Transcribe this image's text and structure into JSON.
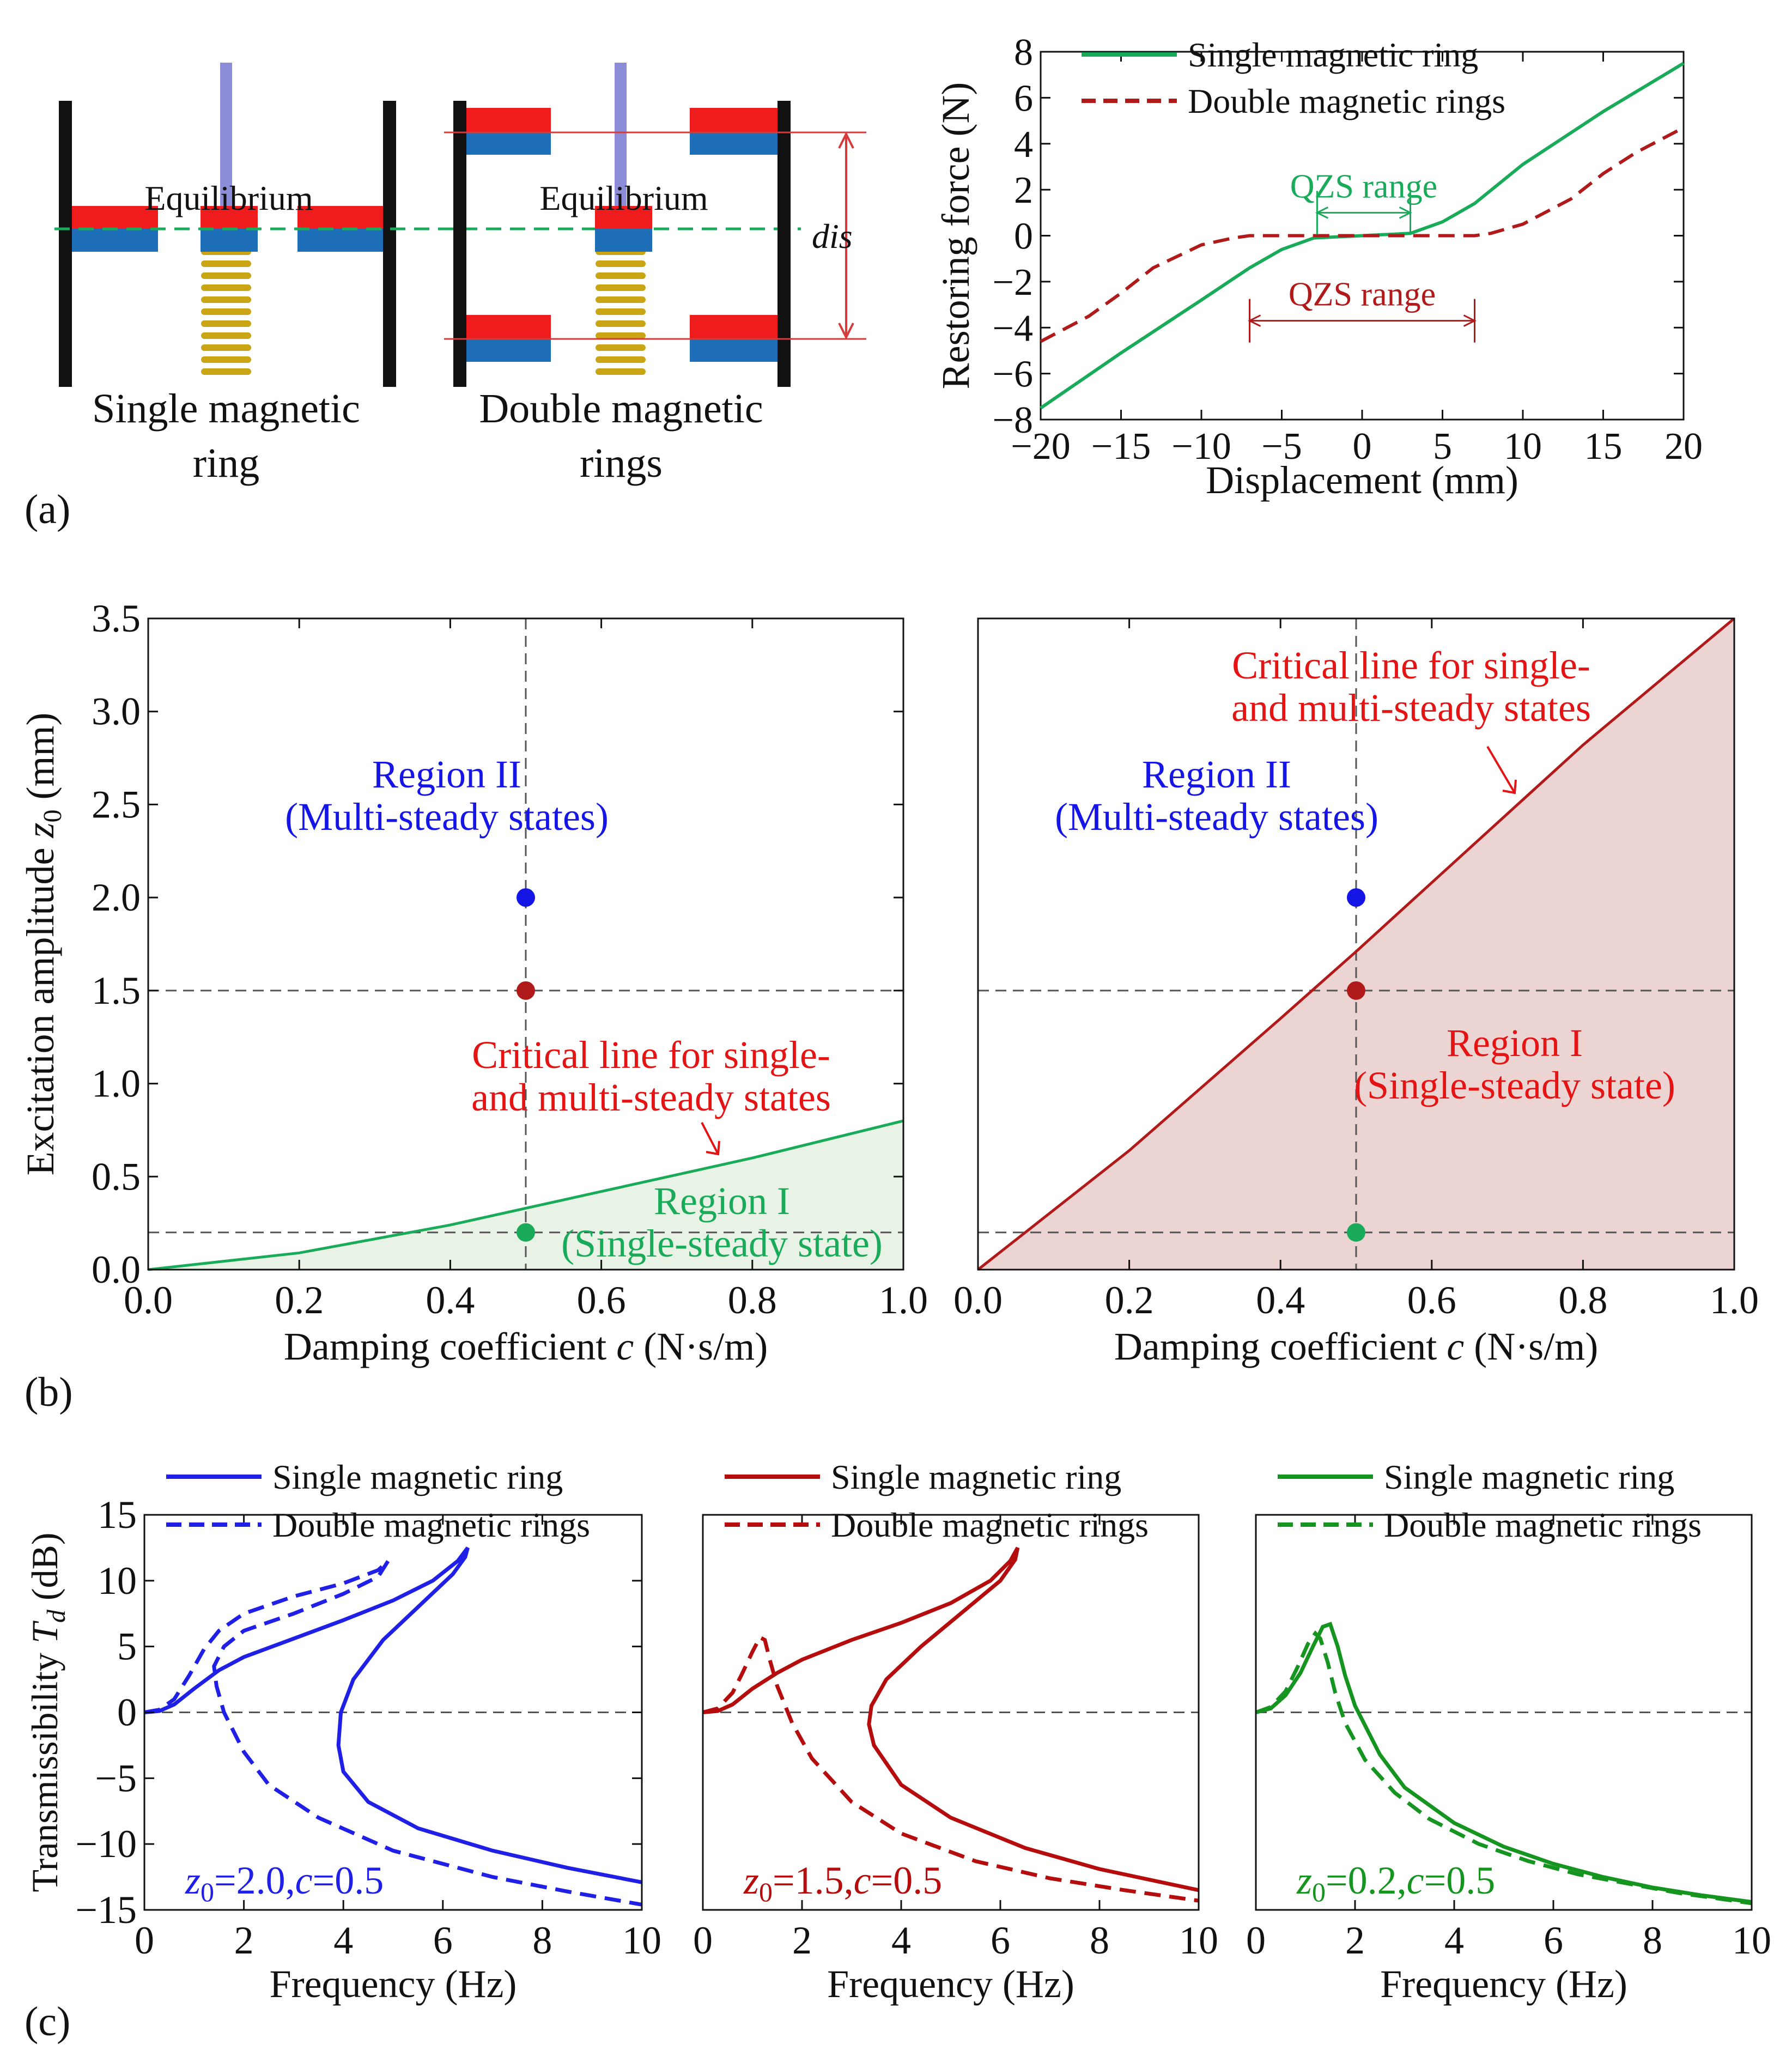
{
  "colors": {
    "magnet_red": "#ee1c1c",
    "magnet_blue": "#1f6fb8",
    "wall": "#111111",
    "rod": "#8c8cd8",
    "spring": "#c9a516",
    "guide": "#d63a3a",
    "single_green": "#1aab5a",
    "double_red": "#b11a1a",
    "region2_blue": "#1515e6",
    "critical_red": "#e41414",
    "fill_green": "#e8f3e6",
    "fill_red": "#ecd4d2",
    "c_blue": "#1f1fe6",
    "c_red": "#b50d0d",
    "c_green": "#159420"
  },
  "panel_a": {
    "label": "(a)",
    "equilibrium_label": "Equilibrium",
    "dis_label": "dis",
    "single_caption": [
      "Single magnetic",
      "ring"
    ],
    "double_caption": [
      "Double magnetic",
      "rings"
    ],
    "icons": [
      "magnetic-ring-icon",
      "spring-icon",
      "rod-icon"
    ]
  },
  "chart_data": [
    {
      "id": "a_force",
      "type": "line",
      "title": "",
      "xlabel": "Displacement (mm)",
      "ylabel": "Restoring force (N)",
      "xlim": [
        -20,
        20
      ],
      "ylim": [
        -8,
        8
      ],
      "xticks": [
        -20,
        -15,
        -10,
        -5,
        0,
        5,
        10,
        15,
        20
      ],
      "yticks": [
        -8,
        -6,
        -4,
        -2,
        0,
        2,
        4,
        6,
        8
      ],
      "legend": "top-left",
      "series": [
        {
          "name": "Single magnetic ring",
          "style": "solid",
          "color": "#1aab5a",
          "x": [
            -20,
            -15,
            -10,
            -7,
            -5,
            -3,
            0,
            3,
            5,
            7,
            10,
            15,
            20
          ],
          "y": [
            -7.5,
            -5.1,
            -2.8,
            -1.4,
            -0.6,
            -0.1,
            0,
            0.1,
            0.6,
            1.4,
            3.1,
            5.4,
            7.5
          ]
        },
        {
          "name": "Double magnetic rings",
          "style": "dashed",
          "color": "#b11a1a",
          "x": [
            -20,
            -17,
            -15,
            -13,
            -10,
            -8,
            -7,
            -5,
            0,
            5,
            7,
            8,
            10,
            13,
            15,
            17,
            20
          ],
          "y": [
            -4.6,
            -3.5,
            -2.5,
            -1.4,
            -0.4,
            -0.1,
            0,
            0,
            0,
            0,
            0,
            0.1,
            0.5,
            1.6,
            2.7,
            3.6,
            4.7
          ]
        }
      ],
      "annotations": [
        {
          "text": "QZS range",
          "color": "#1aab5a",
          "x_from": -2.8,
          "x_to": 3,
          "y": 1.0
        },
        {
          "text": "QZS range",
          "color": "#b11a1a",
          "x_from": -7,
          "x_to": 7,
          "y": -3.7
        }
      ]
    },
    {
      "id": "b_left",
      "type": "area",
      "xlabel": "Damping coefficient c (N·s/m)",
      "ylabel": "Excitation amplitude z0 (mm)",
      "xlim": [
        0,
        1
      ],
      "ylim": [
        0,
        3.5
      ],
      "xticks": [
        "0.0",
        "0.2",
        "0.4",
        "0.6",
        "0.8",
        "1.0"
      ],
      "yticks": [
        "0.0",
        "0.5",
        "1.0",
        "1.5",
        "2.0",
        "2.5",
        "3.0",
        "3.5"
      ],
      "series": [
        {
          "name": "Critical line for single- and multi-steady states",
          "color": "#1aab5a",
          "x": [
            0,
            0.2,
            0.4,
            0.5,
            0.6,
            0.8,
            1.0
          ],
          "y": [
            0,
            0.09,
            0.24,
            0.33,
            0.42,
            0.6,
            0.8
          ]
        }
      ],
      "points": [
        {
          "x": 0.5,
          "y": 2.0,
          "color": "#1515e6"
        },
        {
          "x": 0.5,
          "y": 1.5,
          "color": "#b11a1a"
        },
        {
          "x": 0.5,
          "y": 0.2,
          "color": "#1aab5a"
        }
      ],
      "reference_lines": {
        "x": [
          0.5
        ],
        "y": [
          1.5,
          0.2
        ]
      },
      "texts": {
        "region2": [
          "Region II",
          "(Multi-steady states)"
        ],
        "critical": [
          "Critical line for single-",
          "and multi-steady states"
        ],
        "region1": [
          "Region I",
          "(Single-steady state)"
        ]
      }
    },
    {
      "id": "b_right",
      "type": "area",
      "xlabel": "Damping coefficient c (N·s/m)",
      "ylabel": "",
      "xlim": [
        0,
        1
      ],
      "ylim": [
        0,
        3.5
      ],
      "xticks": [
        "0.0",
        "0.2",
        "0.4",
        "0.6",
        "0.8",
        "1.0"
      ],
      "series": [
        {
          "name": "Critical line for single- and multi-steady states",
          "color": "#b11a1a",
          "x": [
            0,
            0.2,
            0.4,
            0.5,
            0.6,
            0.8,
            1.0
          ],
          "y": [
            0,
            0.64,
            1.35,
            1.71,
            2.08,
            2.82,
            3.5
          ]
        }
      ],
      "points": [
        {
          "x": 0.5,
          "y": 2.0,
          "color": "#1515e6"
        },
        {
          "x": 0.5,
          "y": 1.5,
          "color": "#b11a1a"
        },
        {
          "x": 0.5,
          "y": 0.2,
          "color": "#1aab5a"
        }
      ],
      "reference_lines": {
        "x": [
          0.5
        ],
        "y": [
          1.5,
          0.2
        ]
      },
      "texts": {
        "critical": [
          "Critical line for single-",
          "and multi-steady states"
        ],
        "region2": [
          "Region II",
          "(Multi-steady states)"
        ],
        "region1": [
          "Region I",
          "(Single-steady state)"
        ]
      }
    },
    {
      "id": "c1",
      "type": "line",
      "xlabel": "Frequency (Hz)",
      "ylabel": "Transmissibility Td (dB)",
      "xlim": [
        0,
        10
      ],
      "ylim": [
        -15,
        15
      ],
      "xticks": [
        0,
        2,
        4,
        6,
        8,
        10
      ],
      "yticks": [
        -15,
        -10,
        -5,
        0,
        5,
        10,
        15
      ],
      "case_label": [
        "z",
        "0",
        "=2.0,",
        "c",
        "=0.5"
      ],
      "color": "#1f1fe6",
      "series": [
        {
          "name": "Single magnetic ring",
          "style": "solid",
          "x": [
            0,
            0.3,
            0.6,
            1.0,
            1.5,
            2.0,
            3.0,
            4.0,
            5.0,
            5.8,
            6.3,
            6.5,
            6.45,
            6.2,
            5.5,
            4.8,
            4.2,
            3.95,
            3.9,
            4.0,
            4.5,
            5.5,
            7.0,
            8.5,
            10.0
          ],
          "y": [
            0,
            0.1,
            0.6,
            1.8,
            3.2,
            4.2,
            5.6,
            7.0,
            8.5,
            10.0,
            11.5,
            12.5,
            11.8,
            10.5,
            8.0,
            5.5,
            2.5,
            0,
            -2.5,
            -4.5,
            -6.8,
            -8.8,
            -10.5,
            -11.8,
            -12.9
          ]
        },
        {
          "name": "Double magnetic rings",
          "style": "dashed",
          "x": [
            0,
            0.3,
            0.6,
            0.9,
            1.2,
            1.5,
            2.0,
            3.0,
            4.0,
            4.7,
            4.9,
            4.7,
            4.0,
            3.0,
            2.0,
            1.6,
            1.4,
            1.45,
            1.6,
            2.0,
            2.5,
            3.5,
            5.0,
            7.0,
            8.5,
            10.0
          ],
          "y": [
            0,
            0.2,
            1.0,
            2.8,
            4.8,
            6.2,
            7.5,
            8.8,
            9.8,
            10.8,
            11.5,
            10.3,
            9.0,
            7.5,
            6.2,
            5.0,
            3.5,
            2.0,
            0,
            -3.0,
            -5.5,
            -8.0,
            -10.5,
            -12.5,
            -13.6,
            -14.6
          ]
        }
      ]
    },
    {
      "id": "c2",
      "type": "line",
      "xlabel": "Frequency (Hz)",
      "ylabel": "",
      "xlim": [
        0,
        10
      ],
      "ylim": [
        -15,
        15
      ],
      "xticks": [
        0,
        2,
        4,
        6,
        8,
        10
      ],
      "case_label": [
        "z",
        "0",
        "=1.5,",
        "c",
        "=0.5"
      ],
      "color": "#b50d0d",
      "series": [
        {
          "name": "Single magnetic ring",
          "style": "solid",
          "x": [
            0,
            0.3,
            0.6,
            1.0,
            1.5,
            2.0,
            3.0,
            4.0,
            5.0,
            5.8,
            6.2,
            6.35,
            6.3,
            6.0,
            5.2,
            4.4,
            3.7,
            3.4,
            3.35,
            3.45,
            4.0,
            5.0,
            6.5,
            8.0,
            10.0
          ],
          "y": [
            0,
            0.1,
            0.6,
            1.8,
            3.0,
            4.0,
            5.5,
            6.8,
            8.3,
            10.0,
            11.5,
            12.5,
            11.6,
            10.0,
            7.5,
            5.0,
            2.5,
            0.5,
            -0.9,
            -2.5,
            -5.5,
            -8.0,
            -10.3,
            -11.9,
            -13.5
          ]
        },
        {
          "name": "Double magnetic rings",
          "style": "dashed",
          "x": [
            0,
            0.3,
            0.6,
            0.8,
            1.0,
            1.15,
            1.25,
            1.35,
            1.5,
            1.8,
            2.2,
            3.0,
            4.0,
            5.5,
            7.0,
            8.5,
            10.0
          ],
          "y": [
            0,
            0.3,
            1.5,
            3.0,
            4.6,
            5.7,
            5.5,
            4.0,
            2.0,
            -0.8,
            -3.5,
            -6.8,
            -9.2,
            -11.3,
            -12.6,
            -13.5,
            -14.3
          ]
        }
      ]
    },
    {
      "id": "c3",
      "type": "line",
      "xlabel": "Frequency (Hz)",
      "ylabel": "",
      "xlim": [
        0,
        10
      ],
      "ylim": [
        -15,
        15
      ],
      "xticks": [
        0,
        2,
        4,
        6,
        8,
        10
      ],
      "case_label": [
        "z",
        "0",
        "=0.2,",
        "c",
        "=0.5"
      ],
      "color": "#159420",
      "series": [
        {
          "name": "Single magnetic ring",
          "style": "solid",
          "x": [
            0,
            0.3,
            0.6,
            0.9,
            1.15,
            1.35,
            1.5,
            1.65,
            1.8,
            2.0,
            2.5,
            3.0,
            4.0,
            5.0,
            6.0,
            7.0,
            8.0,
            9.0,
            10.0
          ],
          "y": [
            0,
            0.3,
            1.3,
            3.0,
            5.0,
            6.5,
            6.7,
            5.0,
            2.8,
            0.5,
            -3.2,
            -5.7,
            -8.4,
            -10.2,
            -11.5,
            -12.5,
            -13.3,
            -13.9,
            -14.4
          ]
        },
        {
          "name": "Double magnetic rings",
          "style": "dashed",
          "x": [
            0,
            0.3,
            0.6,
            0.85,
            1.05,
            1.2,
            1.3,
            1.45,
            1.6,
            1.8,
            2.2,
            2.8,
            3.5,
            4.5,
            5.5,
            6.5,
            7.5,
            8.5,
            10.0
          ],
          "y": [
            0,
            0.4,
            1.6,
            3.5,
            5.2,
            6.0,
            5.6,
            3.8,
            1.5,
            -0.8,
            -3.6,
            -6.1,
            -8.1,
            -10.0,
            -11.3,
            -12.3,
            -13.0,
            -13.7,
            -14.5
          ]
        }
      ]
    }
  ],
  "panel_b": {
    "label": "(b)"
  },
  "panel_c": {
    "label": "(c)"
  }
}
